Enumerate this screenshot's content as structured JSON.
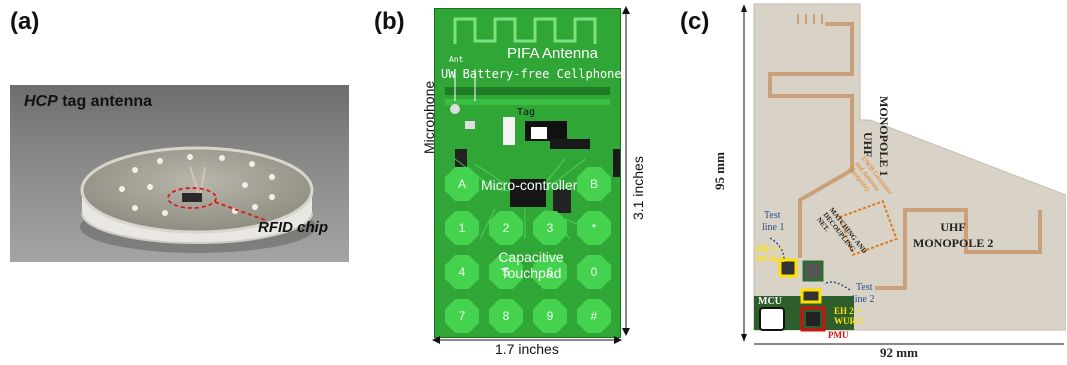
{
  "panels": {
    "a": {
      "label": "(a)",
      "title_italic": "HCP",
      "title_rest": " tag antenna",
      "annotation": "RFID chip"
    },
    "b": {
      "label": "(b)",
      "pcb_title_1": "PIFA Antenna",
      "pcb_title_2": "UW Battery-free Cellphone",
      "ant_label": "Ant",
      "tag_label": "Tag",
      "microphone": "Microphone",
      "microcontroller": "Micro-controller",
      "touchpad_1": "Capacitive",
      "touchpad_2": "Touchpad",
      "keys": [
        "A",
        "",
        "",
        "B",
        "1",
        "2",
        "3",
        "*",
        "4",
        "5",
        "6",
        "0",
        "7",
        "8",
        "9",
        "#"
      ],
      "height_dim": "3.1 inches",
      "width_dim": "1.7 inches"
    },
    "c": {
      "label": "(c)",
      "height_dim": "95 mm",
      "width_dim": "92 mm",
      "monopole1_1": "UHF",
      "monopole1_2": "MONOPOLE 1",
      "monopole2_1": "UHF",
      "monopole2_2": "MONOPOLE 2",
      "test1_1": "Test",
      "test1_2": "line 1",
      "test2_1": "Test",
      "test2_2": "line 2",
      "matching_1": "MATCHING AND",
      "matching_2": "DECOUPLING",
      "matching_3": "NET.",
      "uwb_1": "UWB Generator",
      "uwb_2": "and Antenna",
      "uwb_3": "(footprint)",
      "eh1_1": "EH 1 +",
      "eh1_2": "WUR 1",
      "eh2_1": "EH 2 +",
      "eh2_2": "WUR 2",
      "mcu": "MCU",
      "pmu": "PMU"
    }
  },
  "colors": {
    "pcb_green": "#2fa636",
    "key_green": "#45d34f",
    "copper": "#c9a07a",
    "board_c": "#d8d3c6",
    "highlight_yellow": "#ffe100",
    "highlight_red": "#d01010",
    "highlight_green": "#2f6b2f"
  }
}
